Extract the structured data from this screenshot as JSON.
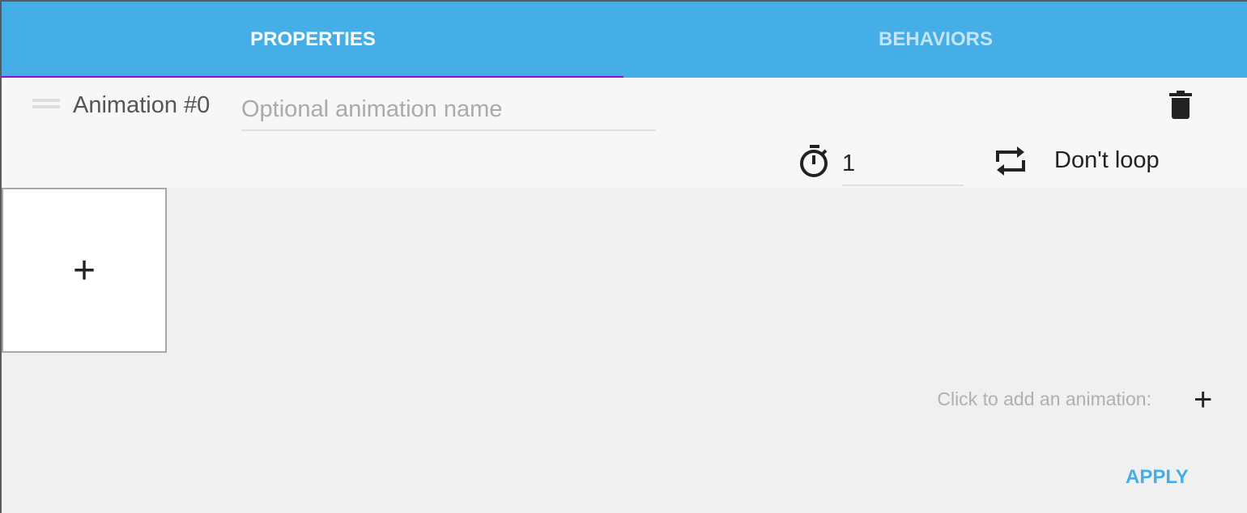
{
  "tabs": [
    {
      "label": "PROPERTIES",
      "active": true
    },
    {
      "label": "BEHAVIORS",
      "active": false
    }
  ],
  "animation": {
    "label": "Animation #0",
    "name_value": "",
    "name_placeholder": "Optional animation name",
    "duration": "1",
    "loop_label": "Don't loop"
  },
  "add_tile_label": "+",
  "footer": {
    "hint": "Click to add an animation:",
    "add_label": "+",
    "apply_label": "APPLY"
  },
  "colors": {
    "accent": "#45aee6",
    "tab_indicator": "#8a12d6"
  }
}
